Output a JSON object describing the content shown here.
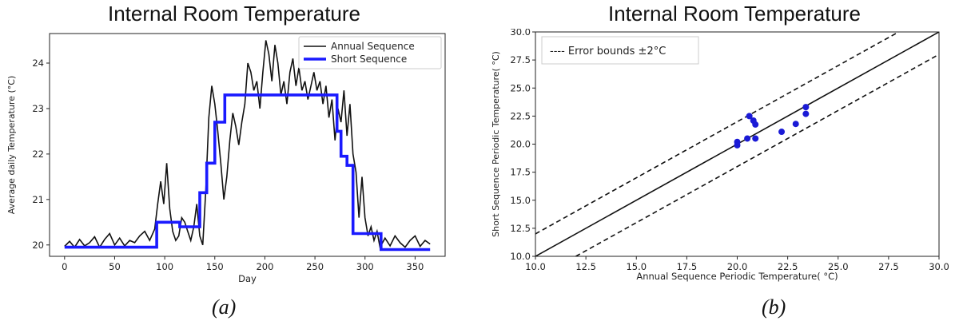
{
  "chart_data": [
    {
      "type": "line",
      "title": "Internal Room Temperature",
      "xlabel": "Day",
      "ylabel": "Average daily Temperature (°C)",
      "caption": "(a)",
      "xlim": [
        -15,
        380
      ],
      "ylim": [
        19.75,
        24.65
      ],
      "xticks": [
        "0",
        "50",
        "100",
        "150",
        "200",
        "250",
        "300",
        "350"
      ],
      "yticks": [
        "20",
        "21",
        "22",
        "23",
        "24"
      ],
      "legend_position": "top-right",
      "series": [
        {
          "name": "Annual Sequence",
          "color": "#111111",
          "x": [
            0,
            5,
            10,
            15,
            20,
            25,
            30,
            35,
            40,
            45,
            50,
            55,
            60,
            65,
            70,
            75,
            80,
            85,
            90,
            93,
            96,
            99,
            102,
            105,
            108,
            111,
            114,
            117,
            120,
            123,
            126,
            129,
            132,
            135,
            138,
            141,
            144,
            147,
            150,
            153,
            156,
            159,
            162,
            165,
            168,
            171,
            174,
            177,
            180,
            183,
            186,
            189,
            192,
            195,
            198,
            201,
            204,
            207,
            210,
            213,
            216,
            219,
            222,
            225,
            228,
            231,
            234,
            237,
            240,
            243,
            246,
            249,
            252,
            255,
            258,
            261,
            264,
            267,
            270,
            273,
            276,
            279,
            282,
            285,
            288,
            291,
            294,
            297,
            300,
            303,
            306,
            309,
            312,
            315,
            320,
            325,
            330,
            335,
            340,
            345,
            350,
            355,
            360,
            365
          ],
          "values": [
            19.97,
            20.08,
            19.95,
            20.12,
            19.98,
            20.05,
            20.18,
            19.95,
            20.12,
            20.25,
            20.0,
            20.15,
            19.98,
            20.1,
            20.05,
            20.2,
            20.3,
            20.1,
            20.35,
            20.9,
            21.4,
            20.9,
            21.8,
            20.8,
            20.3,
            20.1,
            20.2,
            20.6,
            20.5,
            20.3,
            20.1,
            20.4,
            20.9,
            20.2,
            20.0,
            21.2,
            22.8,
            23.5,
            23.1,
            22.5,
            21.8,
            21.0,
            21.5,
            22.3,
            22.9,
            22.6,
            22.2,
            22.7,
            23.1,
            24.0,
            23.8,
            23.4,
            23.6,
            23.0,
            23.8,
            24.5,
            24.2,
            23.6,
            24.4,
            24.0,
            23.3,
            23.6,
            23.1,
            23.8,
            24.1,
            23.5,
            23.9,
            23.4,
            23.6,
            23.2,
            23.5,
            23.8,
            23.4,
            23.6,
            23.1,
            23.5,
            22.8,
            23.2,
            22.3,
            23.0,
            22.7,
            23.4,
            22.4,
            23.1,
            22.0,
            21.6,
            20.6,
            21.5,
            20.6,
            20.2,
            20.4,
            20.1,
            20.3,
            19.95,
            20.15,
            19.98,
            20.2,
            20.05,
            19.95,
            20.1,
            20.2,
            19.97,
            20.1,
            20.02
          ]
        },
        {
          "name": "Short Sequence",
          "color": "#1a1aff",
          "x": [
            0,
            92,
            92,
            115,
            115,
            135,
            135,
            142,
            142,
            150,
            150,
            160,
            160,
            182,
            182,
            272,
            272,
            276,
            276,
            282,
            282,
            288,
            288,
            298,
            298,
            316,
            316,
            365
          ],
          "values": [
            19.95,
            19.95,
            20.5,
            20.5,
            20.4,
            20.4,
            21.15,
            21.15,
            21.8,
            21.8,
            22.7,
            22.7,
            23.3,
            23.3,
            23.3,
            23.3,
            22.5,
            22.5,
            21.95,
            21.95,
            21.75,
            21.75,
            20.25,
            20.25,
            20.25,
            20.25,
            19.9,
            19.9
          ]
        }
      ]
    },
    {
      "type": "scatter",
      "title": "Internal Room Temperature",
      "xlabel": "Annual Sequence Periodic Temperature( °C)",
      "ylabel": "Short Sequence Periodic Temperature( °C)",
      "caption": "(b)",
      "xlim": [
        10,
        30
      ],
      "ylim": [
        10,
        30
      ],
      "xticks": [
        "10.0",
        "12.5",
        "15.0",
        "17.5",
        "20.0",
        "22.5",
        "25.0",
        "27.5",
        "30.0"
      ],
      "yticks": [
        "10.0",
        "12.5",
        "15.0",
        "17.5",
        "20.0",
        "22.5",
        "25.0",
        "27.5",
        "30.0"
      ],
      "legend_position": "top-left",
      "legend": "---- Error bounds ±2°C",
      "point_color": "#1a1ad6",
      "error_bound": 2,
      "points": [
        {
          "x": 20.0,
          "y": 19.9
        },
        {
          "x": 20.0,
          "y": 20.2
        },
        {
          "x": 20.5,
          "y": 20.5
        },
        {
          "x": 20.9,
          "y": 20.5
        },
        {
          "x": 20.6,
          "y": 22.5
        },
        {
          "x": 20.8,
          "y": 22.1
        },
        {
          "x": 20.9,
          "y": 21.75
        },
        {
          "x": 22.2,
          "y": 21.1
        },
        {
          "x": 22.9,
          "y": 21.8
        },
        {
          "x": 23.4,
          "y": 22.7
        },
        {
          "x": 23.4,
          "y": 23.3
        }
      ]
    }
  ]
}
